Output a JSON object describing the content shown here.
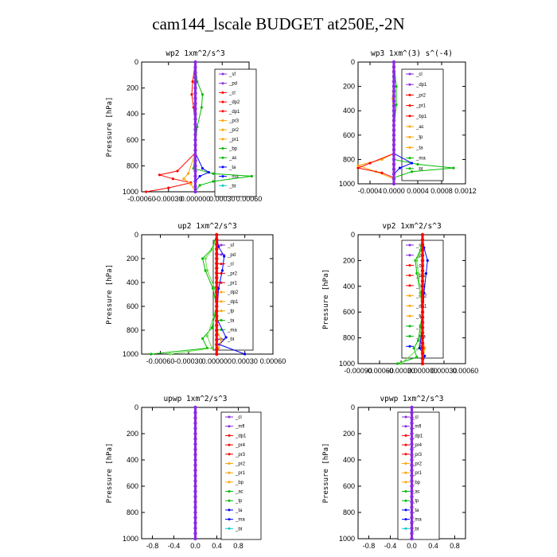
{
  "page": {
    "title": "cam144_lscale  BUDGET at250E,-2N"
  },
  "colors": {
    "purple": "#8a2be2",
    "red": "#ff0000",
    "orange": "#ffa500",
    "blue": "#0000ff",
    "green": "#00bb00",
    "lightgreen": "#66dd44",
    "cyan": "#00cccc"
  },
  "chart_data": [
    {
      "type": "line",
      "title": "wp2  1xm^2/s^3",
      "ylabel": "Pressure [hPa]",
      "ylim": [
        1000,
        0
      ],
      "xlim": [
        -0.0006,
        0.0006
      ],
      "xticks": [
        -0.0006,
        -0.0003,
        0,
        0.0003,
        0.0006
      ],
      "xtick_labels": [
        "-0.00060",
        "-0.00030",
        "0.000000",
        "0.00030",
        "0.00060"
      ],
      "yticks": [
        0,
        200,
        400,
        600,
        800,
        1000
      ],
      "legend": [
        "_sf",
        "_pd",
        "_cl",
        "_dp2",
        "_dp1",
        "_pr3",
        "_pr2",
        "_pr1",
        "_bp",
        "_ac",
        "_ta",
        "_ma",
        "_bt"
      ],
      "series": [
        {
          "name": "_pr1",
          "color": "green",
          "points": [
            [
              0,
              0
            ],
            [
              2e-05,
              150
            ],
            [
              8e-05,
              250
            ],
            [
              7e-05,
              350
            ],
            [
              2e-05,
              500
            ],
            [
              0,
              650
            ],
            [
              -2e-05,
              820
            ],
            [
              0.0002,
              860
            ],
            [
              0.00063,
              880
            ],
            [
              0.0002,
              920
            ],
            [
              5e-05,
              950
            ],
            [
              0,
              1000
            ]
          ]
        },
        {
          "name": "_dp1",
          "color": "red",
          "points": [
            [
              0,
              0
            ],
            [
              -3e-05,
              150
            ],
            [
              -4e-05,
              250
            ],
            [
              -2e-05,
              350
            ],
            [
              0,
              500
            ],
            [
              0,
              700
            ],
            [
              -0.0002,
              840
            ],
            [
              -0.0004,
              870
            ],
            [
              -0.00025,
              900
            ],
            [
              -5e-05,
              930
            ],
            [
              -0.0003,
              970
            ],
            [
              -0.00055,
              1000
            ]
          ]
        },
        {
          "name": "_bp",
          "color": "blue",
          "points": [
            [
              0,
              0
            ],
            [
              0,
              700
            ],
            [
              8e-05,
              820
            ],
            [
              0.00015,
              850
            ],
            [
              5e-05,
              880
            ],
            [
              0,
              920
            ],
            [
              0,
              1000
            ]
          ]
        },
        {
          "name": "_pr2",
          "color": "orange",
          "points": [
            [
              0,
              0
            ],
            [
              0,
              700
            ],
            [
              -8e-05,
              860
            ],
            [
              -0.00013,
              900
            ],
            [
              -5e-05,
              940
            ],
            [
              0,
              1000
            ]
          ]
        },
        {
          "name": "_sf",
          "color": "purple",
          "points": [
            [
              0,
              0
            ],
            [
              0,
              1000
            ]
          ]
        }
      ]
    },
    {
      "type": "line",
      "title": "wp3  1xm^(3) s^(-4)",
      "ylabel": "",
      "ylim": [
        1000,
        0
      ],
      "xlim": [
        -0.0006,
        0.0012
      ],
      "xticks": [
        -0.0004,
        0,
        0.0004,
        0.0008,
        0.0012
      ],
      "xtick_labels": [
        "-0.0004",
        "0.0000",
        "0.0004",
        "0.0008",
        "0.0012"
      ],
      "yticks": [
        0,
        200,
        400,
        600,
        800,
        1000
      ],
      "legend": [
        "_cl",
        "_dp1",
        "_pr2",
        "_pr1",
        "_bp1",
        "_ac",
        "_tp",
        "_ta",
        "_ma",
        "_bt"
      ],
      "series": [
        {
          "name": "_pr1",
          "color": "green",
          "points": [
            [
              0,
              0
            ],
            [
              4e-05,
              200
            ],
            [
              4e-05,
              350
            ],
            [
              0,
              550
            ],
            [
              0,
              800
            ],
            [
              0.0004,
              840
            ],
            [
              0.001,
              870
            ],
            [
              0.0003,
              900
            ],
            [
              0,
              950
            ],
            [
              0,
              1000
            ]
          ]
        },
        {
          "name": "_pr2",
          "color": "orange",
          "points": [
            [
              0,
              0
            ],
            [
              -2e-05,
              300
            ],
            [
              0,
              550
            ],
            [
              0,
              750
            ],
            [
              -0.0002,
              800
            ],
            [
              -0.0006,
              850
            ],
            [
              -0.0003,
              900
            ],
            [
              0,
              960
            ],
            [
              0,
              1000
            ]
          ]
        },
        {
          "name": "_dp1",
          "color": "red",
          "points": [
            [
              0,
              0
            ],
            [
              0,
              750
            ],
            [
              -0.0004,
              830
            ],
            [
              -0.0006,
              870
            ],
            [
              -0.0002,
              910
            ],
            [
              0,
              950
            ],
            [
              0,
              1000
            ]
          ]
        },
        {
          "name": "_bp1",
          "color": "blue",
          "points": [
            [
              0,
              0
            ],
            [
              0,
              750
            ],
            [
              0.0003,
              830
            ],
            [
              0.0001,
              870
            ],
            [
              0,
              920
            ],
            [
              0,
              1000
            ]
          ]
        },
        {
          "name": "_cl",
          "color": "purple",
          "points": [
            [
              0,
              0
            ],
            [
              0,
              1000
            ]
          ]
        }
      ]
    },
    {
      "type": "line",
      "title": "up2  1xm^2/s^3",
      "ylabel": "Pressure [hPa]",
      "ylim": [
        1000,
        0
      ],
      "xlim": [
        -0.0008,
        0.0006
      ],
      "xticks": [
        -0.0006,
        -0.0003,
        0,
        0.0003,
        0.0006
      ],
      "xtick_labels": [
        "-0.00060",
        "-0.00030",
        "0.000000",
        "0.00030",
        "0.00060"
      ],
      "yticks": [
        0,
        200,
        400,
        600,
        800,
        1000
      ],
      "legend": [
        "_sf",
        "_pd",
        "_cl",
        "_pr2",
        "_pr1",
        "_dp2",
        "_dp1",
        "_tp",
        "_ta",
        "_ma",
        "_bt"
      ],
      "series": [
        {
          "name": "_dp1",
          "color": "green",
          "points": [
            [
              0,
              0
            ],
            [
              -5e-05,
              120
            ],
            [
              -0.00015,
              200
            ],
            [
              -0.00012,
              300
            ],
            [
              -4e-05,
              450
            ],
            [
              0,
              600
            ],
            [
              -5e-05,
              780
            ],
            [
              -0.00015,
              870
            ],
            [
              -0.0001,
              950
            ],
            [
              -0.0007,
              1000
            ]
          ]
        },
        {
          "name": "_dp2",
          "color": "lightgreen",
          "points": [
            [
              0,
              0
            ],
            [
              -4e-05,
              120
            ],
            [
              -0.00012,
              200
            ],
            [
              -0.0001,
              300
            ],
            [
              -2e-05,
              450
            ],
            [
              0,
              600
            ],
            [
              -0.0001,
              850
            ],
            [
              -5e-05,
              950
            ],
            [
              -0.0005,
              1000
            ]
          ]
        },
        {
          "name": "_pr1",
          "color": "blue",
          "points": [
            [
              0,
              0
            ],
            [
              2e-05,
              100
            ],
            [
              8e-05,
              180
            ],
            [
              6e-05,
              300
            ],
            [
              2e-05,
              450
            ],
            [
              0,
              700
            ],
            [
              0.0001,
              860
            ],
            [
              3e-05,
              920
            ],
            [
              0.0003,
              1000
            ]
          ]
        },
        {
          "name": "_pr2",
          "color": "orange",
          "points": [
            [
              0,
              0
            ],
            [
              0,
              800
            ],
            [
              5e-05,
              880
            ],
            [
              2e-05,
              950
            ],
            [
              0,
              1000
            ]
          ]
        },
        {
          "name": "_sf",
          "color": "red",
          "points": [
            [
              0,
              0
            ],
            [
              0,
              1000
            ]
          ]
        }
      ]
    },
    {
      "type": "line",
      "title": "vp2  1xm^2/s^3",
      "ylabel": "Pressure [hPa]",
      "ylim": [
        1000,
        0
      ],
      "xlim": [
        -0.0009,
        0.0006
      ],
      "xticks": [
        -0.0009,
        -0.0006,
        -0.0003,
        0,
        0.0003,
        0.0006
      ],
      "xtick_labels": [
        "-0.00090",
        "-0.00060",
        "-0.00030",
        "0.000000",
        "0.00030",
        "0.00060"
      ],
      "yticks": [
        0,
        200,
        400,
        600,
        800,
        1000
      ],
      "legend": [
        "_sf",
        "_pd",
        "_cl",
        "_pr2",
        "_pr1",
        "_dp2",
        "_dp1",
        "_tp",
        "_ta",
        "_ma",
        "_bt"
      ],
      "series": [
        {
          "name": "_dp1",
          "color": "green",
          "points": [
            [
              0,
              0
            ],
            [
              -3e-05,
              120
            ],
            [
              -0.0001,
              200
            ],
            [
              -8e-05,
              300
            ],
            [
              -3e-05,
              450
            ],
            [
              0,
              600
            ],
            [
              -6e-05,
              820
            ],
            [
              -0.00012,
              880
            ],
            [
              -8e-05,
              950
            ],
            [
              -0.00035,
              1000
            ]
          ]
        },
        {
          "name": "_dp2",
          "color": "lightgreen",
          "points": [
            [
              0,
              0
            ],
            [
              -2e-05,
              120
            ],
            [
              -8e-05,
              200
            ],
            [
              -6e-05,
              300
            ],
            [
              0,
              600
            ],
            [
              -5e-05,
              880
            ],
            [
              -0.0003,
              1000
            ]
          ]
        },
        {
          "name": "_pr1",
          "color": "blue",
          "points": [
            [
              0,
              0
            ],
            [
              2e-05,
              100
            ],
            [
              7e-05,
              200
            ],
            [
              5e-05,
              300
            ],
            [
              2e-05,
              450
            ],
            [
              0,
              700
            ],
            [
              -4e-05,
              880
            ],
            [
              3e-05,
              940
            ],
            [
              0,
              1000
            ]
          ]
        },
        {
          "name": "_pr2",
          "color": "orange",
          "points": [
            [
              0,
              0
            ],
            [
              0,
              800
            ],
            [
              3e-05,
              880
            ],
            [
              0,
              1000
            ]
          ]
        },
        {
          "name": "_sf",
          "color": "red",
          "points": [
            [
              0,
              0
            ],
            [
              0,
              1000
            ]
          ]
        }
      ]
    },
    {
      "type": "line",
      "title": "upwp  1xm^2/s^3",
      "ylabel": "Pressure [hPa]",
      "ylim": [
        1000,
        0
      ],
      "xlim": [
        -1,
        1
      ],
      "xticks": [
        -0.8,
        -0.4,
        0,
        0.4,
        0.8
      ],
      "xtick_labels": [
        "-0.8",
        "-0.4",
        "0.0",
        "0.4",
        "0.8"
      ],
      "yticks": [
        0,
        200,
        400,
        600,
        800,
        1000
      ],
      "legend": [
        "_cl",
        "_mfl",
        "_dp1",
        "_pr4",
        "_pr3",
        "_pr2",
        "_pr1",
        "_bp",
        "_ac",
        "_tp",
        "_ta",
        "_ma",
        "_bt"
      ],
      "series": [
        {
          "name": "_cl",
          "color": "purple",
          "points": [
            [
              0,
              0
            ],
            [
              0,
              1000
            ]
          ]
        }
      ]
    },
    {
      "type": "line",
      "title": "vpwp  1xm^2/s^3",
      "ylabel": "Pressure [hPa]",
      "ylim": [
        1000,
        0
      ],
      "xlim": [
        -1,
        1
      ],
      "xticks": [
        -0.8,
        -0.4,
        0,
        0.4,
        0.8
      ],
      "xtick_labels": [
        "-0.8",
        "-0.4",
        "0.0",
        "0.4",
        "0.8"
      ],
      "yticks": [
        0,
        200,
        400,
        600,
        800,
        1000
      ],
      "legend": [
        "_cl",
        "_mfl",
        "_dp1",
        "_pr4",
        "_pr3",
        "_pr2",
        "_pr1",
        "_bp",
        "_ac",
        "_tp",
        "_ta",
        "_ma",
        "_bt"
      ],
      "series": [
        {
          "name": "_cl",
          "color": "purple",
          "points": [
            [
              0,
              0
            ],
            [
              0,
              1000
            ]
          ]
        }
      ]
    }
  ]
}
